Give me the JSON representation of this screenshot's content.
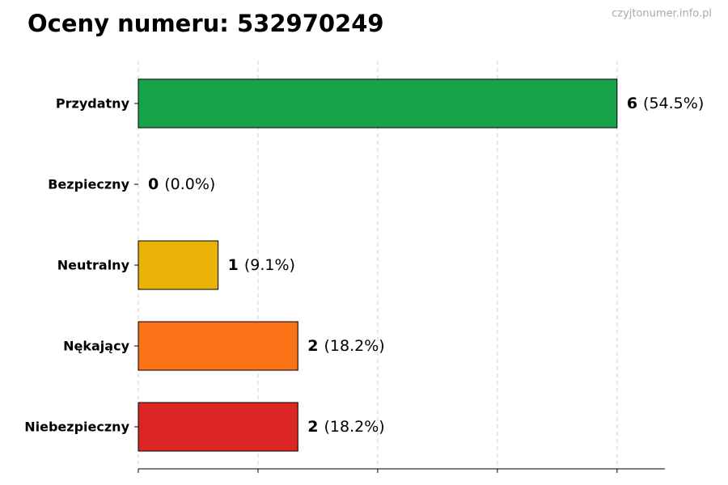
{
  "chart_data": {
    "type": "bar",
    "orientation": "horizontal",
    "title": "Oceny numeru: 532970249",
    "watermark": "czyjtonumer.info.pl",
    "categories": [
      "Przydatny",
      "Bezpieczny",
      "Neutralny",
      "Nękający",
      "Niebezpieczny"
    ],
    "values": [
      6,
      0,
      1,
      2,
      2
    ],
    "colors": [
      "#16a34a",
      "#15803d",
      "#eab308",
      "#f97316",
      "#dc2626"
    ],
    "percentages": [
      54.5,
      0.0,
      9.1,
      18.2,
      18.2
    ],
    "percentage_labels": [
      "(54.5%)",
      "(0.0%)",
      "(9.1%)",
      "(18.2%)",
      "(18.2%)"
    ],
    "xlim": [
      0,
      6.6
    ],
    "xticks": [
      0,
      1.5,
      3,
      4.5,
      6
    ],
    "grid": true
  }
}
